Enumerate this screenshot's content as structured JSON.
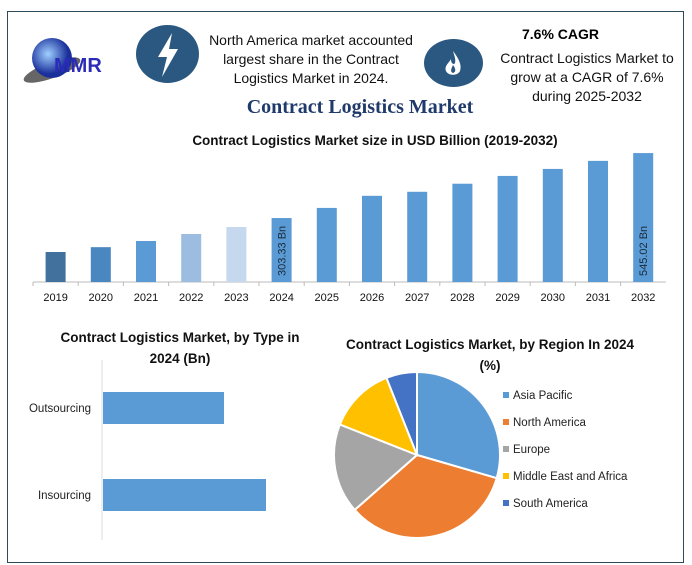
{
  "header": {
    "logo_text": "MMR",
    "info1": "North America market accounted largest share in the Contract Logistics Market in 2024.",
    "info1_icon": "lightning-icon",
    "info2_title": "7.6% CAGR",
    "info2": "Contract Logistics Market to grow at a CAGR of 7.6% during 2025-2032",
    "info2_icon": "flame-icon",
    "main_title": "Contract Logistics Market"
  },
  "colors": {
    "accent": "#2a5880",
    "bar": "#5b9bd5",
    "title": "#1f3a6b"
  },
  "chart_data": [
    {
      "type": "bar",
      "title": "Contract Logistics Market size in USD Billion (2019-2032)",
      "categories": [
        "2019",
        "2020",
        "2021",
        "2022",
        "2023",
        "2024",
        "2025",
        "2026",
        "2027",
        "2028",
        "2029",
        "2030",
        "2031",
        "2032"
      ],
      "values": [
        177,
        195,
        218,
        244,
        270,
        303.33,
        341,
        386,
        401,
        431,
        460,
        486,
        516,
        545.02
      ],
      "colors": [
        "#41719c",
        "#4a86bf",
        "#5b9bd5",
        "#9dbde0",
        "#c5d8ee",
        "#5b9bd5",
        "#5b9bd5",
        "#5b9bd5",
        "#5b9bd5",
        "#5b9bd5",
        "#5b9bd5",
        "#5b9bd5",
        "#5b9bd5",
        "#5b9bd5"
      ],
      "data_labels": {
        "2024": "303.33 Bn",
        "2032": "545.02 Bn"
      },
      "ylim": [
        60,
        560
      ],
      "grid": false
    },
    {
      "type": "bar",
      "orientation": "horizontal",
      "title": "Contract Logistics Market, by Type in 2024 (Bn)",
      "categories": [
        "Outsourcing",
        "Insourcing"
      ],
      "values": [
        121,
        163
      ],
      "grid": false
    },
    {
      "type": "pie",
      "title": "Contract Logistics Market, by Region In 2024 (%)",
      "labels": [
        "Asia Pacific",
        "North America",
        "Europe",
        "Middle East and Africa",
        "South America"
      ],
      "values": [
        29.5,
        34,
        17.5,
        13,
        6
      ],
      "colors": [
        "#5b9bd5",
        "#ed7d31",
        "#a5a5a5",
        "#ffc000",
        "#4472c4"
      ],
      "legend": "right"
    }
  ]
}
